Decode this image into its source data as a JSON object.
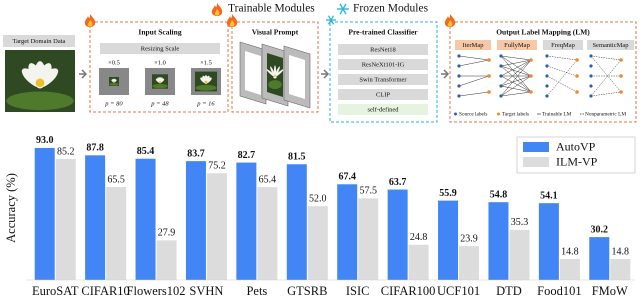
{
  "header": {
    "trainable": "Trainable Modules",
    "frozen": "Frozen Modules"
  },
  "diagram": {
    "input": {
      "label": "Target Domain Data"
    },
    "scaling": {
      "title": "Input Scaling",
      "bar": "Resizing Scale",
      "scales": [
        "×0.5",
        "×1.0",
        "×1.5"
      ],
      "patch": [
        "p = 80",
        "p = 48",
        "p = 16"
      ]
    },
    "prompt": {
      "title": "Visual Prompt"
    },
    "classifier": {
      "title": "Pre-trained Classifier",
      "models": [
        "ResNet18",
        "ResNeXt101-IG",
        "Swin Transformer",
        "CLIP",
        "self-defined"
      ]
    },
    "mapping": {
      "title": "Output Label Mapping (LM)",
      "methods": [
        "IterMap",
        "FullyMap",
        "FreqMap",
        "SemanticMap"
      ],
      "legend": [
        "Source labels",
        "Target labels",
        "Trainable LM",
        "Nonparametric LM"
      ]
    }
  },
  "chart_data": {
    "type": "bar",
    "y_label": "Accuracy (%)",
    "categories": [
      "EuroSAT",
      "CIFAR10",
      "Flowers102",
      "SVHN",
      "Pets",
      "GTSRB",
      "ISIC",
      "CIFAR100",
      "UCF101",
      "DTD",
      "Food101",
      "FMoW"
    ],
    "series": [
      {
        "name": "AutoVP",
        "color": "#4285f4",
        "values": [
          93.0,
          87.8,
          85.4,
          83.7,
          82.7,
          81.5,
          67.4,
          63.7,
          55.9,
          54.8,
          54.1,
          30.2
        ],
        "value_labels": [
          "93.0",
          "87.8",
          "85.4",
          "83.7",
          "82.7",
          "81.5",
          "67.4",
          "63.7",
          "55.9",
          "54.8",
          "54.1",
          "30.2"
        ]
      },
      {
        "name": "ILM-VP",
        "color": "#dcdcdc",
        "values": [
          85.2,
          65.5,
          27.9,
          75.2,
          65.4,
          52.0,
          57.5,
          24.8,
          23.9,
          35.3,
          14.8,
          14.8
        ],
        "value_labels": [
          "85.2",
          "65.5",
          "27.9",
          "75.2",
          "65.4",
          "52.0",
          "57.5",
          "24.8",
          "23.9",
          "35.3",
          "14.8",
          "14.8"
        ]
      }
    ],
    "ylim": [
      0,
      100
    ],
    "legend": "upper right"
  }
}
